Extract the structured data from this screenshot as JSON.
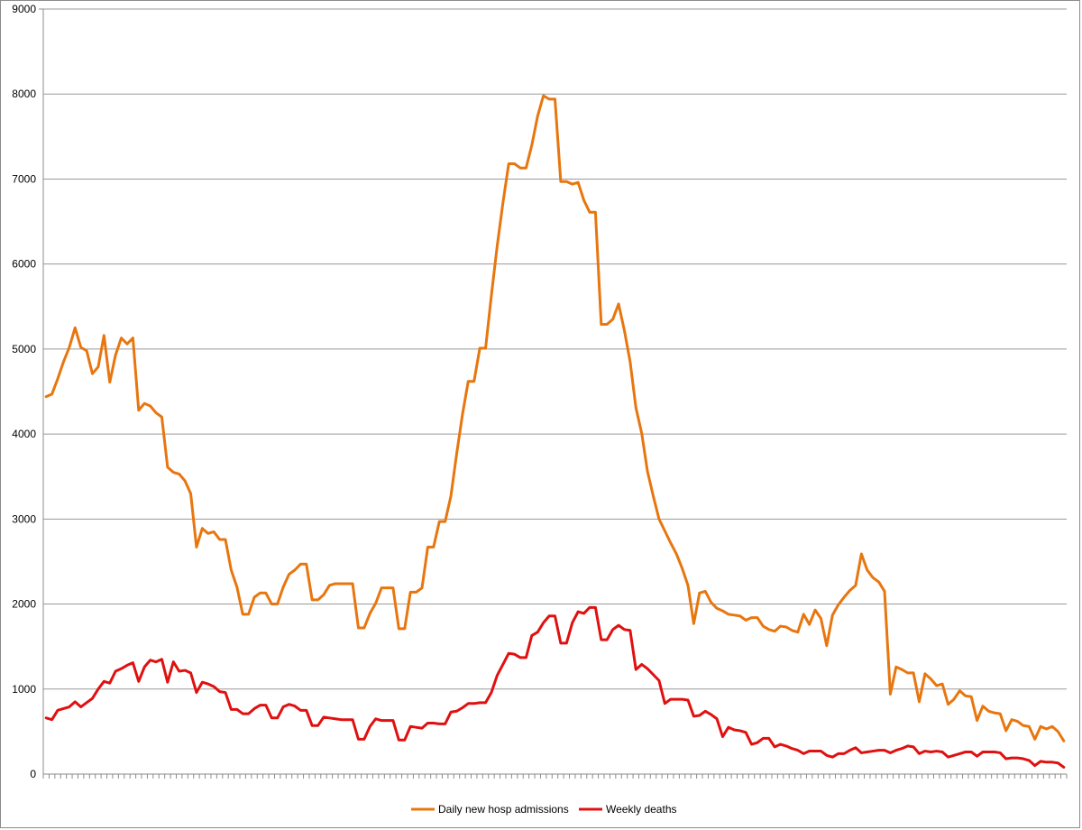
{
  "chart_data": {
    "type": "line",
    "title": "",
    "xlabel": "",
    "ylabel": "",
    "ylim": [
      0,
      9000
    ],
    "yticks": [
      0,
      1000,
      2000,
      3000,
      4000,
      5000,
      6000,
      7000,
      8000,
      9000
    ],
    "grid": true,
    "legend_position": "bottom",
    "series": [
      {
        "name": "Daily new hosp admissions",
        "color": "#e8760f",
        "values": [
          4440,
          4470,
          4650,
          4850,
          5020,
          5250,
          5020,
          4980,
          4710,
          4790,
          5160,
          4610,
          4930,
          5130,
          5060,
          5130,
          4280,
          4360,
          4330,
          4250,
          4200,
          3610,
          3550,
          3530,
          3450,
          3300,
          2670,
          2890,
          2830,
          2850,
          2760,
          2760,
          2400,
          2200,
          1880,
          1880,
          2080,
          2130,
          2130,
          2000,
          2000,
          2200,
          2350,
          2400,
          2470,
          2470,
          2050,
          2050,
          2110,
          2220,
          2240,
          2240,
          2240,
          2240,
          1720,
          1720,
          1890,
          2010,
          2190,
          2190,
          2190,
          1710,
          1710,
          2140,
          2140,
          2190,
          2670,
          2670,
          2970,
          2970,
          3270,
          3770,
          4230,
          4620,
          4620,
          5010,
          5010,
          5630,
          6210,
          6720,
          7180,
          7180,
          7130,
          7130,
          7400,
          7740,
          7980,
          7940,
          7940,
          6970,
          6970,
          6940,
          6960,
          6750,
          6610,
          6610,
          5290,
          5290,
          5350,
          5530,
          5220,
          4850,
          4310,
          4010,
          3560,
          3270,
          3000,
          2860,
          2720,
          2590,
          2420,
          2220,
          1770,
          2130,
          2150,
          2020,
          1950,
          1920,
          1880,
          1870,
          1860,
          1810,
          1840,
          1840,
          1740,
          1700,
          1680,
          1740,
          1730,
          1690,
          1670,
          1880,
          1760,
          1930,
          1830,
          1510,
          1870,
          1990,
          2080,
          2160,
          2220,
          2590,
          2400,
          2310,
          2260,
          2150,
          940,
          1260,
          1230,
          1190,
          1190,
          850,
          1180,
          1120,
          1040,
          1060,
          820,
          880,
          980,
          920,
          910,
          630,
          800,
          740,
          720,
          710,
          510,
          640,
          620,
          570,
          560,
          410,
          560,
          530,
          560,
          500,
          390
        ]
      },
      {
        "name": "Weekly deaths",
        "color": "#e01010",
        "values": [
          660,
          640,
          750,
          770,
          790,
          850,
          790,
          840,
          890,
          1000,
          1090,
          1070,
          1210,
          1240,
          1280,
          1310,
          1090,
          1260,
          1340,
          1320,
          1350,
          1080,
          1320,
          1210,
          1220,
          1190,
          960,
          1080,
          1060,
          1030,
          970,
          960,
          760,
          760,
          710,
          710,
          770,
          810,
          810,
          660,
          660,
          790,
          820,
          800,
          750,
          750,
          570,
          570,
          670,
          660,
          650,
          640,
          640,
          640,
          410,
          410,
          560,
          650,
          630,
          630,
          630,
          400,
          400,
          560,
          550,
          540,
          600,
          600,
          590,
          590,
          730,
          740,
          780,
          830,
          830,
          840,
          840,
          960,
          1160,
          1290,
          1420,
          1410,
          1370,
          1370,
          1630,
          1670,
          1780,
          1860,
          1860,
          1540,
          1540,
          1780,
          1910,
          1890,
          1960,
          1960,
          1580,
          1580,
          1700,
          1750,
          1700,
          1690,
          1230,
          1290,
          1240,
          1170,
          1100,
          830,
          880,
          880,
          880,
          870,
          680,
          690,
          740,
          700,
          650,
          440,
          550,
          520,
          510,
          490,
          350,
          370,
          420,
          420,
          320,
          350,
          330,
          300,
          280,
          240,
          270,
          270,
          270,
          220,
          200,
          240,
          240,
          280,
          310,
          250,
          260,
          270,
          280,
          280,
          250,
          280,
          300,
          330,
          320,
          240,
          270,
          260,
          270,
          260,
          200,
          220,
          240,
          260,
          260,
          210,
          260,
          260,
          260,
          250,
          180,
          190,
          190,
          180,
          160,
          100,
          150,
          140,
          140,
          130,
          80
        ]
      }
    ]
  }
}
